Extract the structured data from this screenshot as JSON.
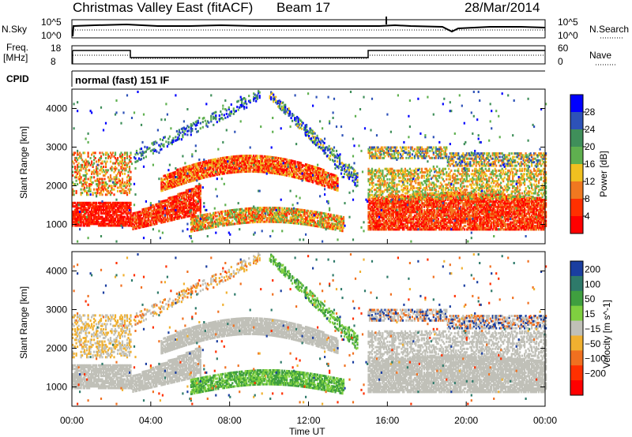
{
  "header": {
    "title": "Christmas Valley East (fitACF)",
    "beam": "Beam 17",
    "date": "28/Mar/2014"
  },
  "top_panels": {
    "nsky_label": "N.Sky",
    "nsky_ticks": [
      "10^5",
      "10^0"
    ],
    "nsearch_label": "N.Search",
    "nsearch_ticks": [
      "10^5",
      "10^0"
    ],
    "freq_label_line1": "Freq.",
    "freq_label_line2": "[MHz]",
    "freq_ticks": [
      "18",
      "8"
    ],
    "nave_label": "Nave",
    "nave_ticks": [
      "60",
      "0"
    ],
    "cpid_label": "CPID",
    "cpid_text": "normal (fast) 151 IF"
  },
  "chart_data": [
    {
      "type": "heatmap",
      "name": "power",
      "xlabel": "Time UT",
      "ylabel": "Slant Range [km]",
      "x_ticks": [
        "00:00",
        "04:00",
        "08:00",
        "12:00",
        "16:00",
        "20:00",
        "00:00"
      ],
      "y_ticks": [
        1000,
        2000,
        3000,
        4000
      ],
      "ylim": [
        500,
        4500
      ],
      "colorbar_label": "Power [dB]",
      "colorbar_ticks": [
        4,
        8,
        12,
        16,
        20,
        24,
        28
      ],
      "colorbar_colors": [
        "#0000ff",
        "#2d52b8",
        "#3f8f5a",
        "#5fb04f",
        "#f0c020",
        "#f07820",
        "#ff3000",
        "#ff0000"
      ]
    },
    {
      "type": "heatmap",
      "name": "velocity",
      "xlabel": "Time UT",
      "ylabel": "Slant Range [km]",
      "x_ticks": [
        "00:00",
        "04:00",
        "08:00",
        "12:00",
        "16:00",
        "20:00",
        "00:00"
      ],
      "y_ticks": [
        1000,
        2000,
        3000,
        4000
      ],
      "ylim": [
        500,
        4500
      ],
      "colorbar_label": "Velocity [m s^-1]",
      "colorbar_ticks": [
        200,
        100,
        50,
        15,
        -15,
        -50,
        -100,
        -200
      ],
      "colorbar_colors": [
        "#1a3ea0",
        "#2e7a6a",
        "#3f9f3f",
        "#7fd040",
        "#c0c0b8",
        "#f0b030",
        "#f07020",
        "#ff3000",
        "#ff0000"
      ]
    }
  ]
}
